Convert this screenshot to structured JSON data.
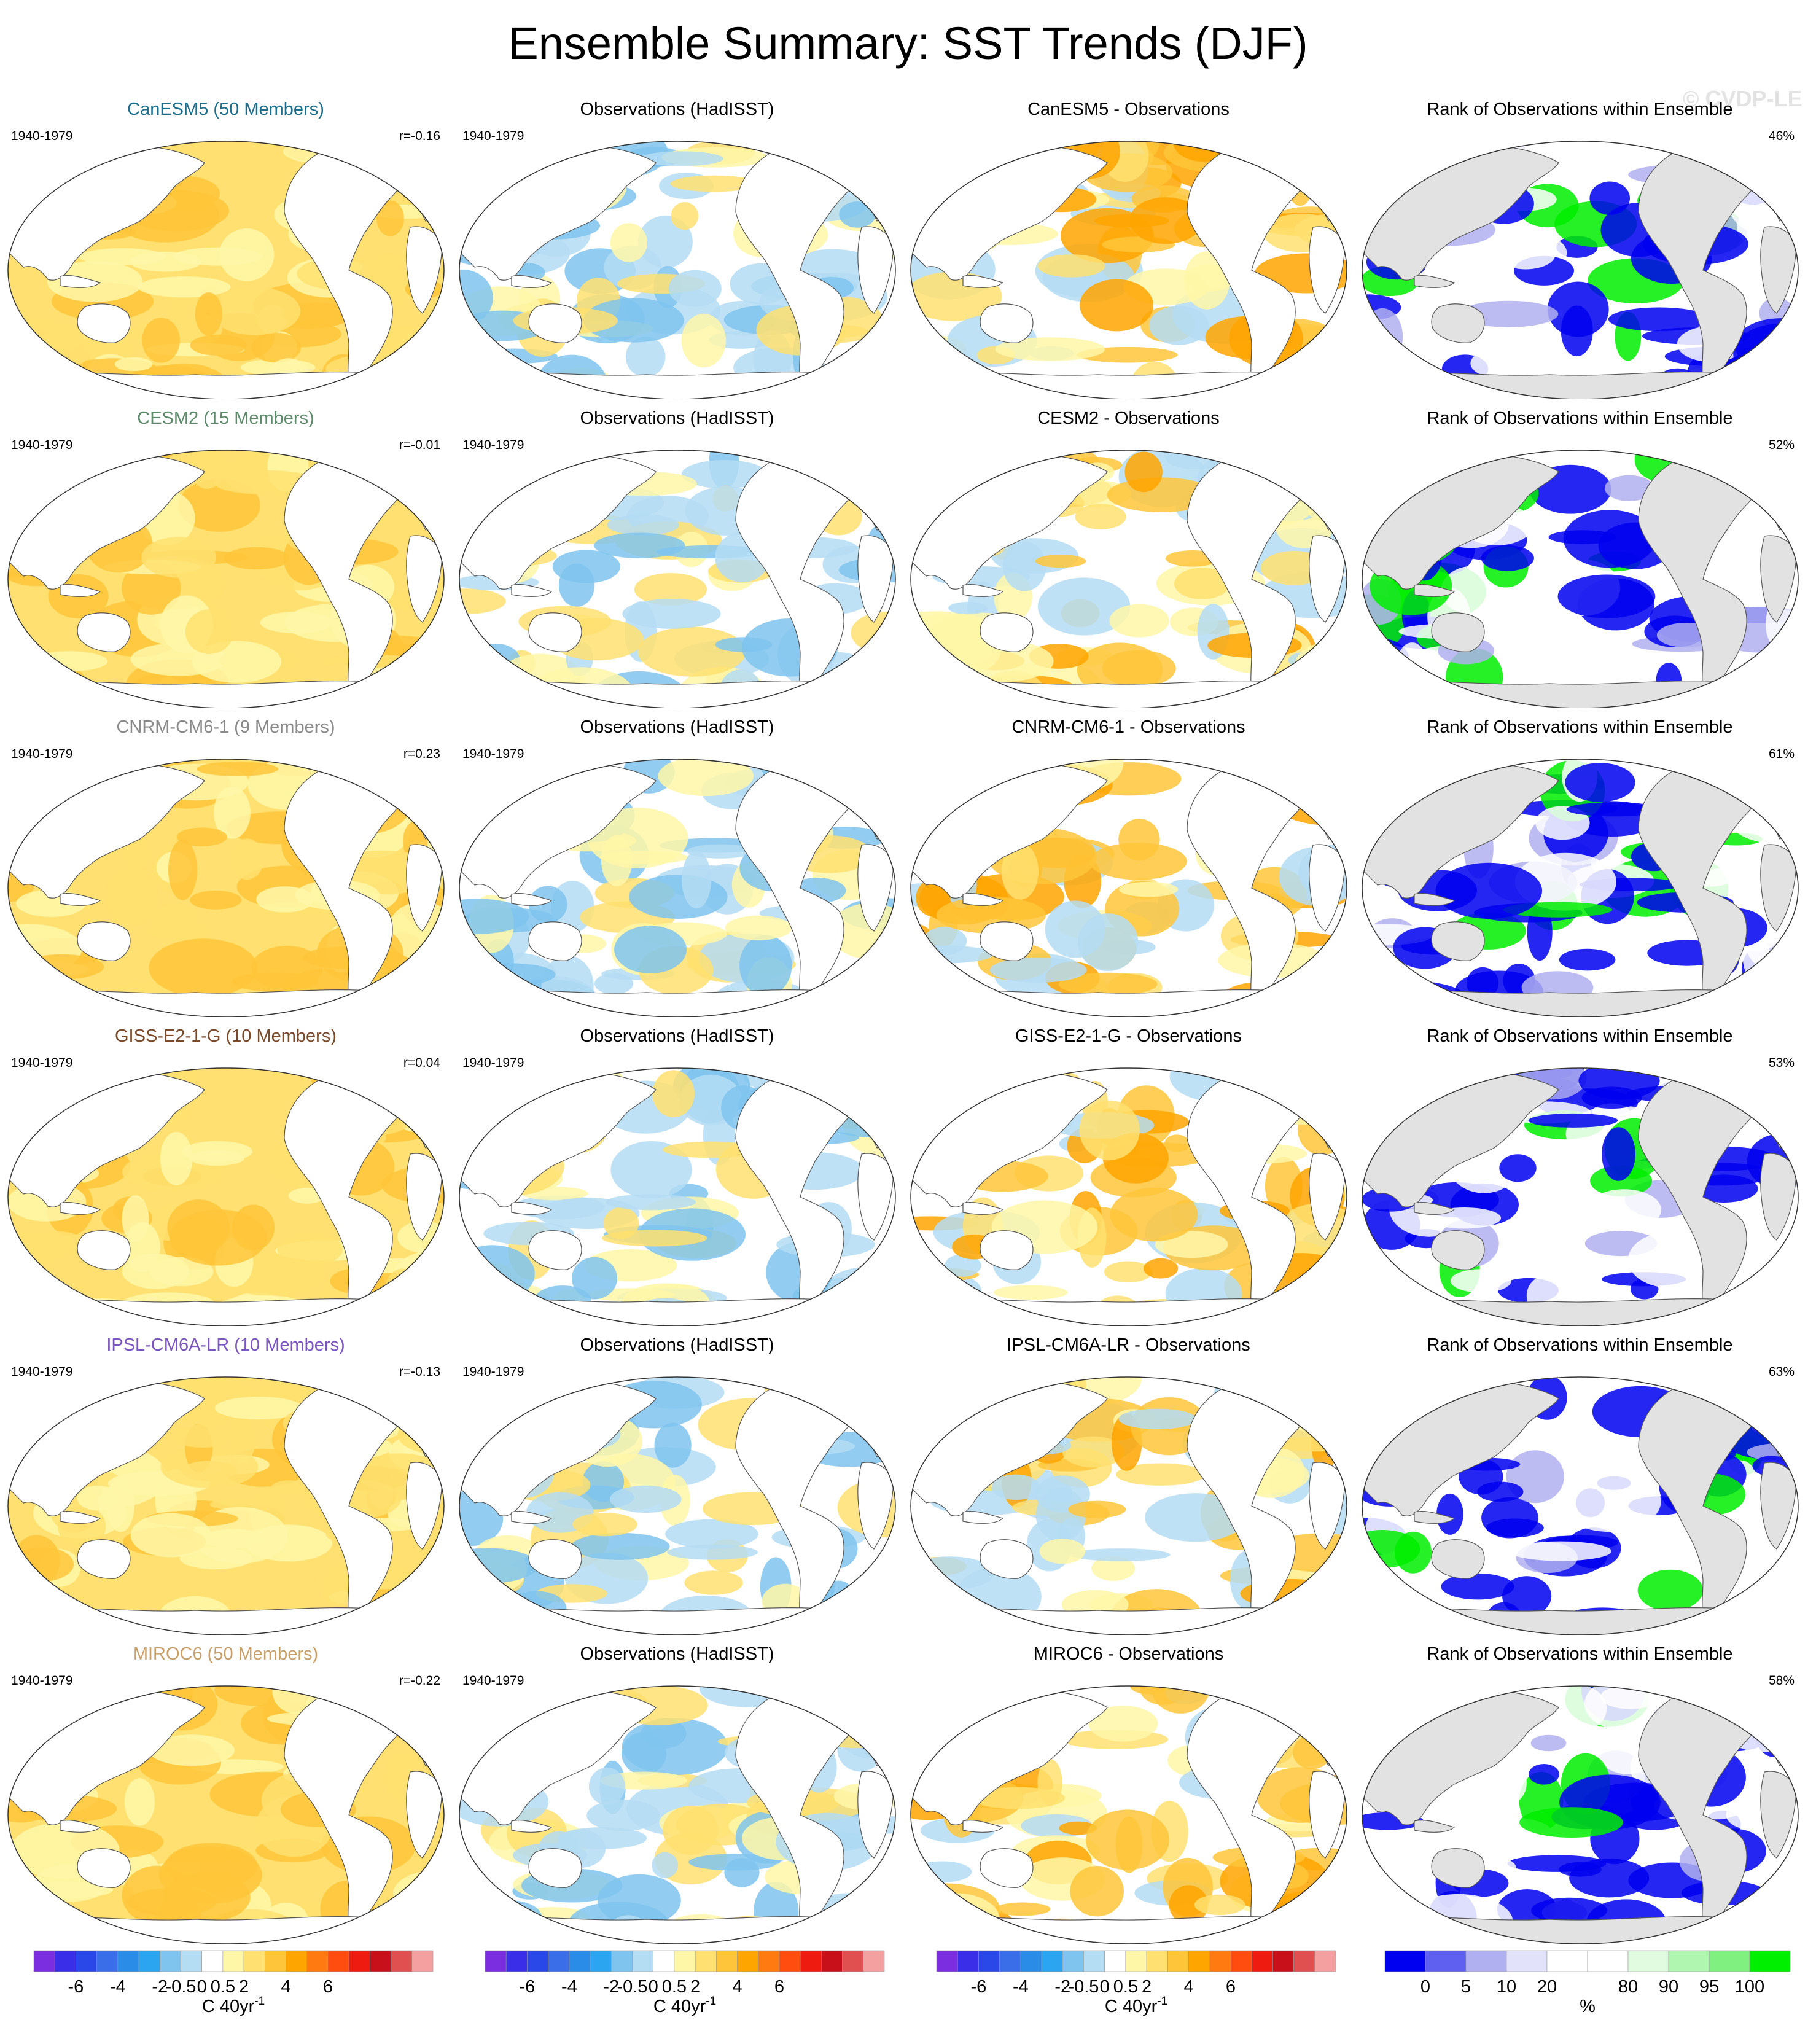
{
  "title": "Ensemble Summary: SST Trends (DJF)",
  "watermark": "© CVDP-LE",
  "period": "1940-1979",
  "obs_title": "Observations (HadISST)",
  "rank_title": "Rank of Observations within Ensemble",
  "colors": {
    "diverging": [
      "#7b2de0",
      "#3a2ee8",
      "#2a48e8",
      "#3a6ee8",
      "#2b8ce8",
      "#2ba5f0",
      "#7fc4ef",
      "#b4dcf3",
      "#ffffff",
      "#fff7a8",
      "#ffe070",
      "#ffc53a",
      "#ffa500",
      "#ff7a10",
      "#ff4d10",
      "#ee1c10",
      "#c8101a",
      "#e05050",
      "#f4a0a0"
    ],
    "rank": [
      "#0000f0",
      "#6060f0",
      "#b0b0f0",
      "#e2e2fb",
      "#ffffff",
      "#ffffff",
      "#e0fbe0",
      "#b0f5b0",
      "#80f080",
      "#00ee00"
    ],
    "land_rank": "#e2e2e2"
  },
  "rows": [
    {
      "model": "CanESM5 (50 Members)",
      "model_color": "#1b6e8c",
      "r": "r=-0.16",
      "diff_title": "CanESM5 - Observations",
      "rank_pct": "46%"
    },
    {
      "model": "CESM2 (15 Members)",
      "model_color": "#5d8a6a",
      "r": "r=-0.01",
      "diff_title": "CESM2 - Observations",
      "rank_pct": "52%"
    },
    {
      "model": "CNRM-CM6-1 (9 Members)",
      "model_color": "#8a8a8a",
      "r": "r=0.23",
      "diff_title": "CNRM-CM6-1 - Observations",
      "rank_pct": "61%"
    },
    {
      "model": "GISS-E2-1-G (10 Members)",
      "model_color": "#7a4a2a",
      "r": "r=0.04",
      "diff_title": "GISS-E2-1-G - Observations",
      "rank_pct": "53%"
    },
    {
      "model": "IPSL-CM6A-LR (10 Members)",
      "model_color": "#7b55c0",
      "r": "r=-0.13",
      "diff_title": "IPSL-CM6A-LR - Observations",
      "rank_pct": "63%"
    },
    {
      "model": "MIROC6 (50 Members)",
      "model_color": "#c9a06a",
      "r": "r=-0.22",
      "diff_title": "MIROC6 - Observations",
      "rank_pct": "58%"
    }
  ],
  "colorbars": {
    "trend_ticks": [
      "-6",
      "-4",
      "-2",
      "-0.5",
      "0",
      "0.5",
      "2",
      "4",
      "6"
    ],
    "trend_units": "C 40yr",
    "trend_units_sup": "-1",
    "rank_ticks": [
      "0",
      "5",
      "10",
      "20",
      "80",
      "90",
      "95",
      "100"
    ],
    "rank_units": "%"
  },
  "chart_data": {
    "type": "heatmap",
    "description_panels": [
      "model ensemble mean SST trend",
      "observed SST trend",
      "model minus observations",
      "rank of observations within ensemble"
    ],
    "trend_levels": [
      -6,
      -4,
      -2,
      -0.5,
      0,
      0.5,
      2,
      4,
      6
    ],
    "rank_levels": [
      0,
      5,
      10,
      20,
      80,
      90,
      95,
      100
    ]
  }
}
